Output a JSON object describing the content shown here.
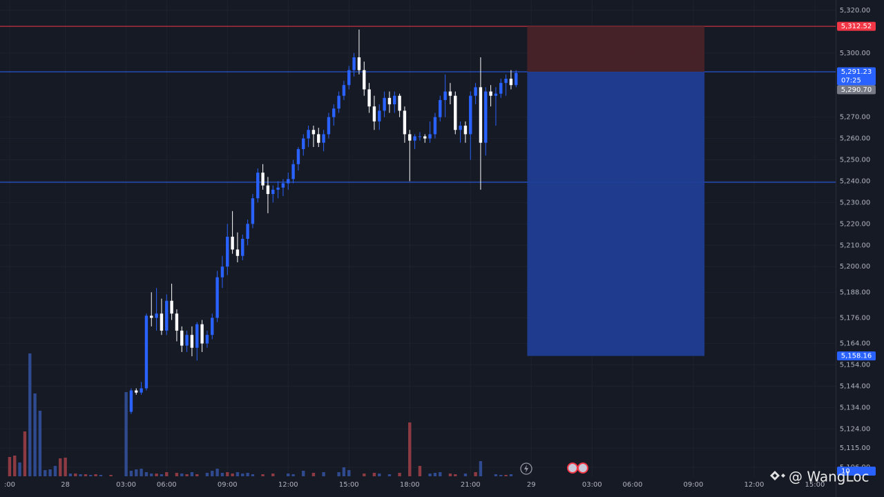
{
  "chart_data": {
    "type": "candlestick",
    "x": [
      24,
      25,
      26,
      27,
      28,
      29,
      30,
      31,
      32,
      33,
      34,
      35,
      36,
      37,
      38,
      39,
      40,
      41,
      42,
      43,
      44,
      45,
      46,
      47,
      48,
      49,
      50,
      51,
      52,
      53,
      54,
      55,
      56,
      57,
      58,
      59,
      60,
      61,
      62,
      63,
      64,
      65,
      66,
      67,
      68,
      69,
      70,
      71,
      72,
      73,
      74,
      75,
      76,
      77,
      78,
      79,
      80,
      81,
      82,
      83,
      84,
      85,
      86,
      87,
      88,
      89,
      90,
      91,
      92,
      93,
      94,
      95,
      96,
      97,
      98,
      99,
      100
    ],
    "open": [
      5132,
      5142,
      5141,
      5143,
      5177,
      5176,
      5178,
      5170,
      5184,
      5178,
      5170,
      5163,
      5168,
      5162,
      5173,
      5164,
      5168,
      5176,
      5195,
      5200,
      5214,
      5208,
      5205,
      5213,
      5220,
      5232,
      5244,
      5238,
      5234,
      5236,
      5237,
      5239,
      5241,
      5248,
      5255,
      5260,
      5264,
      5262,
      5258,
      5262,
      5270,
      5274,
      5280,
      5285,
      5292,
      5298,
      5292,
      5283,
      5275,
      5268,
      5273,
      5279,
      5276,
      5280,
      5273,
      5262,
      5259,
      5261,
      5261,
      5260,
      5262,
      5270,
      5278,
      5282,
      5280,
      5264,
      5266,
      5262,
      5280,
      5284,
      5258,
      5282,
      5280,
      5281,
      5286,
      5288,
      5285
    ],
    "high": [
      5143,
      5143,
      5146,
      5178,
      5188,
      5190,
      5185,
      5187,
      5192,
      5180,
      5172,
      5170,
      5172,
      5174,
      5175,
      5170,
      5178,
      5198,
      5205,
      5220,
      5226,
      5216,
      5215,
      5222,
      5234,
      5246,
      5248,
      5242,
      5238,
      5240,
      5241,
      5244,
      5250,
      5256,
      5262,
      5266,
      5266,
      5265,
      5264,
      5272,
      5276,
      5282,
      5287,
      5294,
      5300,
      5311,
      5296,
      5286,
      5280,
      5276,
      5282,
      5282,
      5282,
      5281,
      5275,
      5264,
      5262,
      5263,
      5262,
      5268,
      5272,
      5280,
      5290,
      5286,
      5282,
      5268,
      5268,
      5282,
      5286,
      5298,
      5284,
      5285,
      5284,
      5288,
      5290,
      5292,
      5292
    ],
    "low": [
      5131,
      5140,
      5140,
      5142,
      5172,
      5170,
      5168,
      5168,
      5175,
      5165,
      5160,
      5160,
      5158,
      5156,
      5160,
      5162,
      5166,
      5174,
      5190,
      5196,
      5206,
      5202,
      5203,
      5210,
      5218,
      5230,
      5236,
      5225,
      5230,
      5232,
      5233,
      5236,
      5239,
      5245,
      5252,
      5256,
      5256,
      5256,
      5254,
      5260,
      5266,
      5272,
      5278,
      5283,
      5289,
      5290,
      5280,
      5272,
      5264,
      5264,
      5270,
      5272,
      5272,
      5270,
      5258,
      5240,
      5255,
      5259,
      5258,
      5258,
      5260,
      5268,
      5270,
      5276,
      5262,
      5258,
      5258,
      5250,
      5276,
      5236,
      5252,
      5275,
      5266,
      5279,
      5280,
      5283,
      5284
    ],
    "close": [
      5142,
      5141,
      5143,
      5177,
      5176,
      5178,
      5170,
      5184,
      5178,
      5170,
      5163,
      5168,
      5162,
      5173,
      5164,
      5168,
      5176,
      5195,
      5200,
      5214,
      5208,
      5205,
      5213,
      5220,
      5232,
      5244,
      5238,
      5234,
      5236,
      5237,
      5239,
      5241,
      5248,
      5255,
      5260,
      5264,
      5262,
      5258,
      5262,
      5270,
      5274,
      5280,
      5285,
      5292,
      5298,
      5292,
      5283,
      5275,
      5268,
      5273,
      5279,
      5276,
      5280,
      5273,
      5262,
      5259,
      5261,
      5261,
      5260,
      5262,
      5270,
      5278,
      5282,
      5280,
      5264,
      5266,
      5262,
      5280,
      5284,
      5258,
      5282,
      5280,
      5281,
      5286,
      5288,
      5285,
      5290.7
    ],
    "up_color": "#2962ff",
    "down_color": "#ffffff",
    "volume_up": {
      "color": "#2f4a8f",
      "x": [
        2,
        4,
        5,
        6,
        7,
        8,
        9,
        12,
        14,
        16,
        18,
        23,
        24,
        25,
        26,
        27,
        28,
        30,
        34,
        36,
        39,
        40,
        41,
        42,
        45,
        46,
        47,
        48,
        55,
        56,
        58,
        62,
        65,
        66,
        67,
        73,
        75,
        83,
        84,
        85,
        90,
        93,
        96,
        97,
        99
      ],
      "values": [
        200,
        1780,
        1200,
        950,
        90,
        100,
        150,
        40,
        30,
        20,
        20,
        1220,
        80,
        100,
        110,
        60,
        40,
        30,
        40,
        60,
        50,
        80,
        110,
        50,
        60,
        40,
        50,
        30,
        40,
        30,
        80,
        60,
        60,
        130,
        90,
        40,
        30,
        40,
        50,
        60,
        40,
        220,
        30,
        20,
        30
      ]
    },
    "volume_down": {
      "color": "#8e3a42",
      "x": [
        0,
        1,
        3,
        10,
        11,
        13,
        15,
        17,
        20,
        29,
        31,
        33,
        35,
        37,
        43,
        44,
        50,
        52,
        60,
        70,
        72,
        77,
        79,
        81,
        87,
        88,
        92,
        98
      ],
      "values": [
        280,
        300,
        650,
        260,
        270,
        40,
        30,
        30,
        20,
        40,
        60,
        50,
        30,
        30,
        60,
        40,
        30,
        40,
        50,
        40,
        50,
        50,
        780,
        150,
        40,
        30,
        60,
        20
      ]
    },
    "volume_lim": [
      0,
      2000
    ],
    "volume_tag": "10",
    "ylim": [
      5101.8,
      5324.85
    ],
    "yticks": [
      {
        "value": 5320,
        "label": "5,320.00"
      },
      {
        "value": 5300,
        "label": "5,300.00"
      },
      {
        "value": 5270,
        "label": "5,270.00"
      },
      {
        "value": 5260,
        "label": "5,260.00"
      },
      {
        "value": 5250,
        "label": "5,250.00"
      },
      {
        "value": 5240,
        "label": "5,240.00"
      },
      {
        "value": 5230,
        "label": "5,230.00"
      },
      {
        "value": 5220,
        "label": "5,220.00"
      },
      {
        "value": 5210,
        "label": "5,210.00"
      },
      {
        "value": 5200,
        "label": "5,200.00"
      },
      {
        "value": 5188,
        "label": "5,188.00"
      },
      {
        "value": 5176,
        "label": "5,176.00"
      },
      {
        "value": 5164,
        "label": "5,164.00"
      },
      {
        "value": 5154,
        "label": "5,154.00"
      },
      {
        "value": 5144,
        "label": "5,144.00"
      },
      {
        "value": 5134,
        "label": "5,134.00"
      },
      {
        "value": 5124,
        "label": "5,124.00"
      },
      {
        "value": 5115,
        "label": "5,115.00"
      },
      {
        "value": 5106,
        "label": "5,106.00"
      }
    ],
    "xlim": [
      -1.9,
      163.1
    ],
    "xticks": [
      {
        "value": 0,
        "label": ":00"
      },
      {
        "value": 11,
        "label": "28"
      },
      {
        "value": 23,
        "label": "03:00"
      },
      {
        "value": 31,
        "label": "06:00"
      },
      {
        "value": 43,
        "label": "09:00"
      },
      {
        "value": 55,
        "label": "12:00"
      },
      {
        "value": 67,
        "label": "15:00"
      },
      {
        "value": 79,
        "label": "18:00"
      },
      {
        "value": 91,
        "label": "21:00"
      },
      {
        "value": 103,
        "label": "29"
      },
      {
        "value": 115,
        "label": "03:00"
      },
      {
        "value": 123,
        "label": "06:00"
      },
      {
        "value": 135,
        "label": "09:00"
      },
      {
        "value": 147,
        "label": "12:00"
      },
      {
        "value": 159,
        "label": "15:00"
      }
    ],
    "levels": [
      {
        "value": 5312.52,
        "color": "#f23645"
      },
      {
        "value": 5291.23,
        "color": "#2962ff"
      },
      {
        "value": 5239.5,
        "color": "#2962ff"
      }
    ],
    "position": {
      "entry": 5291.23,
      "stop": 5312.52,
      "target": 5158.16,
      "x_start": 102.2,
      "x_end": 137.2,
      "stop_color": "#4a2329",
      "target_color": "#1f3f99"
    },
    "price_tags": [
      {
        "value": 5312.52,
        "label": "5,312.52",
        "color": "#f23645"
      },
      {
        "value": 5291.23,
        "label": "5,291.23",
        "color": "#2962ff",
        "countdown": "07:25"
      },
      {
        "value": 5290.7,
        "label": "5,290.70",
        "color": "#787b86"
      },
      {
        "value": 5158.16,
        "label": "5,158.16",
        "color": "#2962ff"
      }
    ],
    "watermark": "@ WangLoc"
  }
}
